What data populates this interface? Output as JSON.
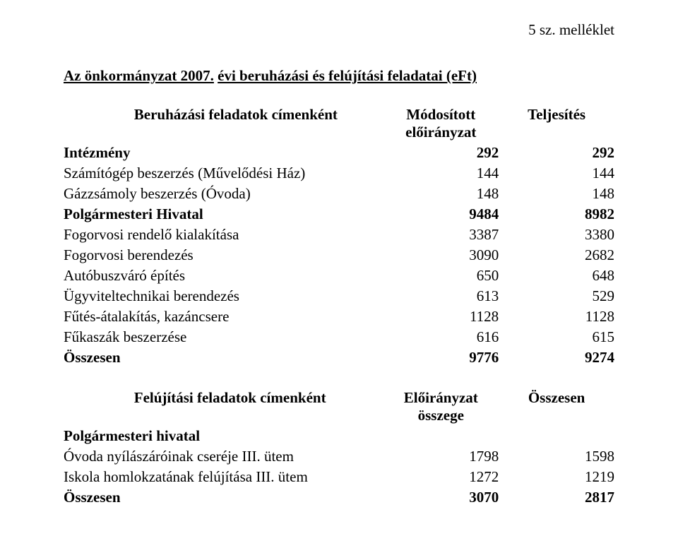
{
  "annex": "5 sz. melléklet",
  "title": "Az önkormányzat 2007. évi beruházási és felújítási feladatai (eFt)",
  "title_part1": "Az önkormányzat 2007.",
  "title_part2": "évi beruházási és felújítási feladatai (eFt)",
  "table1": {
    "header": {
      "c1": "Beruházási feladatok címenként",
      "c2_line1": "Módosított",
      "c2_line2": "előirányzat",
      "c3": "Teljesítés"
    },
    "rows": [
      {
        "label": "Intézmény",
        "v1": "292",
        "v2": "292",
        "bold": true
      },
      {
        "label": "Számítógép beszerzés (Művelődési Ház)",
        "v1": "144",
        "v2": "144",
        "bold": false
      },
      {
        "label": "Gázzsámoly beszerzés (Óvoda)",
        "v1": "148",
        "v2": "148",
        "bold": false
      },
      {
        "label": "Polgármesteri Hivatal",
        "v1": "9484",
        "v2": "8982",
        "bold": true
      },
      {
        "label": "Fogorvosi rendelő kialakítása",
        "v1": "3387",
        "v2": "3380",
        "bold": false
      },
      {
        "label": "Fogorvosi berendezés",
        "v1": "3090",
        "v2": "2682",
        "bold": false
      },
      {
        "label": "Autóbuszváró építés",
        "v1": "650",
        "v2": "648",
        "bold": false
      },
      {
        "label": "Ügyviteltechnikai berendezés",
        "v1": "613",
        "v2": "529",
        "bold": false
      },
      {
        "label": "Fűtés-átalakítás, kazáncsere",
        "v1": "1128",
        "v2": "1128",
        "bold": false
      },
      {
        "label": "Fűkaszák beszerzése",
        "v1": "616",
        "v2": "615",
        "bold": false
      },
      {
        "label": "Összesen",
        "v1": "9776",
        "v2": "9274",
        "bold": true
      }
    ]
  },
  "table2": {
    "header": {
      "c1": "Felújítási feladatok címenként",
      "c2_line1": "Előirányzat",
      "c2_line2": "összege",
      "c3": "Összesen"
    },
    "rows": [
      {
        "label": "Polgármesteri hivatal",
        "v1": "",
        "v2": "",
        "bold": true
      },
      {
        "label": "Óvoda nyílászáróinak cseréje III. ütem",
        "v1": "1798",
        "v2": "1598",
        "bold": false
      },
      {
        "label": "Iskola homlokzatának felújítása III. ütem",
        "v1": "1272",
        "v2": "1219",
        "bold": false
      },
      {
        "label": "Összesen",
        "v1": "3070",
        "v2": "2817",
        "bold": true
      }
    ]
  }
}
